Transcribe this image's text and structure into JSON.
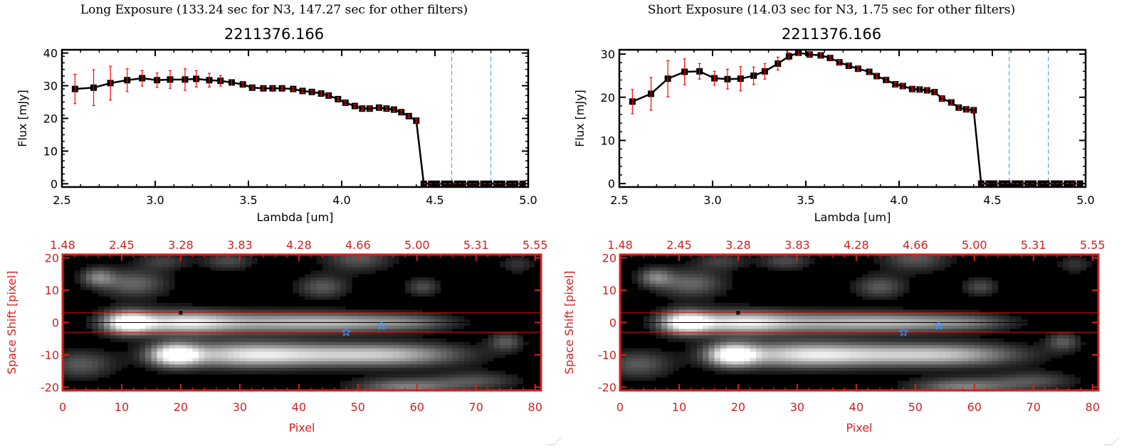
{
  "panels": [
    {
      "title": "Long Exposure (133.24 sec for N3, 147.27 sec for other filters)",
      "object_id": "2211376.166"
    },
    {
      "title": "Short Exposure (14.03 sec for N3, 1.75 sec for other filters)",
      "object_id": "2211376.166"
    }
  ],
  "chart_data": [
    {
      "type": "line",
      "panel": 0,
      "xlabel": "Lambda [um]",
      "ylabel": "Flux [mJy]",
      "xlim": [
        2.5,
        5.0
      ],
      "ylim": [
        -1,
        41
      ],
      "xticks": [
        "2.5",
        "3.0",
        "3.5",
        "4.0",
        "4.5",
        "5.0"
      ],
      "yticks": [
        "0",
        "10",
        "20",
        "30",
        "40"
      ],
      "x": [
        2.57,
        2.67,
        2.76,
        2.85,
        2.93,
        3.01,
        3.08,
        3.16,
        3.22,
        3.29,
        3.35,
        3.41,
        3.47,
        3.52,
        3.58,
        3.63,
        3.68,
        3.74,
        3.79,
        3.84,
        3.89,
        3.93,
        3.98,
        4.02,
        4.07,
        4.11,
        4.15,
        4.2,
        4.24,
        4.28,
        4.32,
        4.36,
        4.4
      ],
      "y": [
        29.0,
        29.4,
        30.8,
        31.7,
        32.3,
        31.7,
        31.9,
        31.9,
        32.1,
        31.7,
        31.5,
        31.0,
        30.4,
        29.4,
        29.2,
        29.2,
        29.2,
        29.0,
        28.4,
        28.1,
        27.6,
        27.0,
        25.9,
        24.8,
        23.8,
        23.0,
        23.0,
        23.3,
        23.0,
        22.7,
        21.9,
        20.7,
        19.3
      ],
      "yerr": [
        4.5,
        5.5,
        5.2,
        3.5,
        2.4,
        2.2,
        2.7,
        3.3,
        2.5,
        2.1,
        1.6,
        0.9,
        0.6,
        0.5,
        0.5,
        0.5,
        0.5,
        0.5,
        0.5,
        0.5,
        0.5,
        0.5,
        0.5,
        0.5,
        0.5,
        0.5,
        0.5,
        0.5,
        0.5,
        0.5,
        0.5,
        0.5,
        0.5
      ],
      "zero_x": [
        4.44,
        4.48,
        4.51,
        4.55,
        4.58,
        4.62,
        4.65,
        4.69,
        4.72,
        4.76,
        4.79,
        4.83,
        4.86,
        4.9,
        4.93,
        4.97
      ],
      "zero_y": 0,
      "vlines": [
        4.59,
        4.8
      ],
      "colors": {
        "line": "#000000",
        "errorbar": "#ff0000",
        "vline": "#3399ff",
        "zero_line": "#ff0000"
      }
    },
    {
      "type": "line",
      "panel": 1,
      "xlabel": "Lambda [um]",
      "ylabel": "Flux [mJy]",
      "xlim": [
        2.5,
        5.0
      ],
      "ylim": [
        -0.8,
        31
      ],
      "xticks": [
        "2.5",
        "3.0",
        "3.5",
        "4.0",
        "4.5",
        "5.0"
      ],
      "yticks": [
        "0",
        "10",
        "20",
        "30"
      ],
      "x": [
        2.57,
        2.67,
        2.76,
        2.85,
        2.93,
        3.01,
        3.08,
        3.15,
        3.22,
        3.28,
        3.35,
        3.41,
        3.46,
        3.52,
        3.58,
        3.63,
        3.68,
        3.73,
        3.78,
        3.84,
        3.88,
        3.93,
        3.98,
        4.02,
        4.07,
        4.11,
        4.15,
        4.19,
        4.23,
        4.28,
        4.32,
        4.36,
        4.4
      ],
      "y": [
        19.0,
        20.8,
        24.3,
        25.9,
        26.0,
        24.4,
        24.2,
        24.3,
        25.0,
        26.0,
        27.8,
        29.5,
        30.3,
        29.9,
        29.7,
        29.1,
        28.1,
        27.3,
        26.6,
        25.9,
        24.9,
        24.0,
        23.0,
        22.6,
        21.9,
        21.8,
        21.6,
        21.2,
        19.7,
        18.8,
        17.6,
        17.2,
        17.0
      ],
      "yerr": [
        2.8,
        3.8,
        4.2,
        3.0,
        1.8,
        1.6,
        2.3,
        2.8,
        2.0,
        1.8,
        1.5,
        0.8,
        0.6,
        0.5,
        0.5,
        0.5,
        0.5,
        0.5,
        0.5,
        0.5,
        0.5,
        0.5,
        0.5,
        0.5,
        0.5,
        0.5,
        0.5,
        0.5,
        0.5,
        0.5,
        0.5,
        0.5,
        0.5
      ],
      "zero_x": [
        4.44,
        4.48,
        4.51,
        4.55,
        4.58,
        4.62,
        4.65,
        4.69,
        4.72,
        4.76,
        4.79,
        4.83,
        4.86,
        4.9,
        4.93,
        4.97
      ],
      "zero_y": 0,
      "vlines": [
        4.59,
        4.8
      ],
      "colors": {
        "line": "#000000",
        "errorbar": "#ff0000",
        "vline": "#3399ff",
        "zero_line": "#ff0000"
      }
    },
    {
      "type": "heatmap",
      "panel": 0,
      "xlabel": "Pixel",
      "ylabel": "Space Shift [pixel]",
      "xlim": [
        0,
        81
      ],
      "ylim": [
        -21,
        21
      ],
      "xticks": [
        "0",
        "10",
        "20",
        "30",
        "40",
        "50",
        "60",
        "70",
        "80"
      ],
      "yticks": [
        "-20",
        "-10",
        "0",
        "10",
        "20"
      ],
      "top_xticks": [
        "1.48",
        "2.45",
        "3.28",
        "3.83",
        "4.28",
        "4.66",
        "5.00",
        "5.31",
        "5.55"
      ],
      "hlines_red": [
        3,
        -3
      ],
      "hline_black": 0,
      "stars": [
        [
          48,
          -3
        ],
        [
          54,
          -1
        ]
      ],
      "marker_square": [
        20,
        3
      ],
      "sources": [
        [
          11,
          0,
          1.0,
          3,
          2.5
        ],
        [
          20,
          0,
          0.75,
          6,
          2.5
        ],
        [
          35,
          0,
          0.6,
          10,
          2.3
        ],
        [
          50,
          0,
          0.45,
          8,
          2
        ],
        [
          60,
          0,
          0.25,
          5,
          1.8
        ],
        [
          19,
          -10,
          1.0,
          3,
          2.5
        ],
        [
          30,
          -10,
          0.7,
          8,
          2.8
        ],
        [
          45,
          -10,
          0.6,
          10,
          2.5
        ],
        [
          58,
          -10,
          0.45,
          8,
          2.5
        ],
        [
          3,
          -13,
          0.35,
          4,
          3
        ],
        [
          12,
          12,
          0.4,
          4,
          3
        ],
        [
          6,
          14,
          0.45,
          2,
          2
        ],
        [
          44,
          11,
          0.35,
          3,
          2.5
        ],
        [
          61,
          11,
          0.3,
          2,
          2
        ],
        [
          50,
          20,
          0.35,
          4,
          3
        ],
        [
          28,
          19,
          0.3,
          3,
          2
        ],
        [
          17,
          19,
          0.25,
          3,
          2
        ],
        [
          75,
          -6,
          0.35,
          2,
          2
        ],
        [
          58,
          -20,
          0.5,
          6,
          2
        ],
        [
          70,
          -18,
          0.3,
          5,
          2
        ],
        [
          77,
          18,
          0.2,
          2,
          2
        ]
      ],
      "colors": {
        "axes": "#d42020",
        "cmap": "gray",
        "star": "#3399ff"
      }
    },
    {
      "type": "heatmap",
      "panel": 1,
      "xlabel": "Pixel",
      "ylabel": "Space Shift [pixel]",
      "xlim": [
        0,
        81
      ],
      "ylim": [
        -21,
        21
      ],
      "xticks": [
        "0",
        "10",
        "20",
        "30",
        "40",
        "50",
        "60",
        "70",
        "80"
      ],
      "yticks": [
        "-20",
        "-10",
        "0",
        "10",
        "20"
      ],
      "top_xticks": [
        "1.48",
        "2.45",
        "3.28",
        "3.83",
        "4.28",
        "4.66",
        "5.00",
        "5.31",
        "5.55"
      ],
      "hlines_red": [
        3,
        -3
      ],
      "hline_black": 0,
      "stars": [
        [
          48,
          -3
        ],
        [
          54,
          -1
        ]
      ],
      "marker_square": [
        20,
        3
      ],
      "sources": [
        [
          11,
          0,
          1.0,
          3,
          2.5
        ],
        [
          20,
          0,
          0.75,
          6,
          2.5
        ],
        [
          35,
          0,
          0.6,
          10,
          2.3
        ],
        [
          50,
          0,
          0.45,
          8,
          2
        ],
        [
          60,
          0,
          0.25,
          5,
          1.8
        ],
        [
          19,
          -10,
          1.0,
          3,
          2.5
        ],
        [
          30,
          -10,
          0.7,
          8,
          2.8
        ],
        [
          45,
          -10,
          0.6,
          10,
          2.5
        ],
        [
          58,
          -10,
          0.45,
          8,
          2.5
        ],
        [
          3,
          -13,
          0.35,
          4,
          3
        ],
        [
          12,
          12,
          0.4,
          4,
          3
        ],
        [
          6,
          14,
          0.45,
          2,
          2
        ],
        [
          44,
          11,
          0.35,
          3,
          2.5
        ],
        [
          61,
          11,
          0.3,
          2,
          2
        ],
        [
          50,
          20,
          0.35,
          4,
          3
        ],
        [
          28,
          19,
          0.3,
          3,
          2
        ],
        [
          17,
          19,
          0.25,
          3,
          2
        ],
        [
          75,
          -6,
          0.35,
          2,
          2
        ],
        [
          58,
          -20,
          0.5,
          6,
          2
        ],
        [
          70,
          -18,
          0.3,
          5,
          2
        ],
        [
          77,
          18,
          0.2,
          2,
          2
        ]
      ],
      "colors": {
        "axes": "#d42020",
        "cmap": "gray",
        "star": "#3399ff"
      }
    }
  ]
}
